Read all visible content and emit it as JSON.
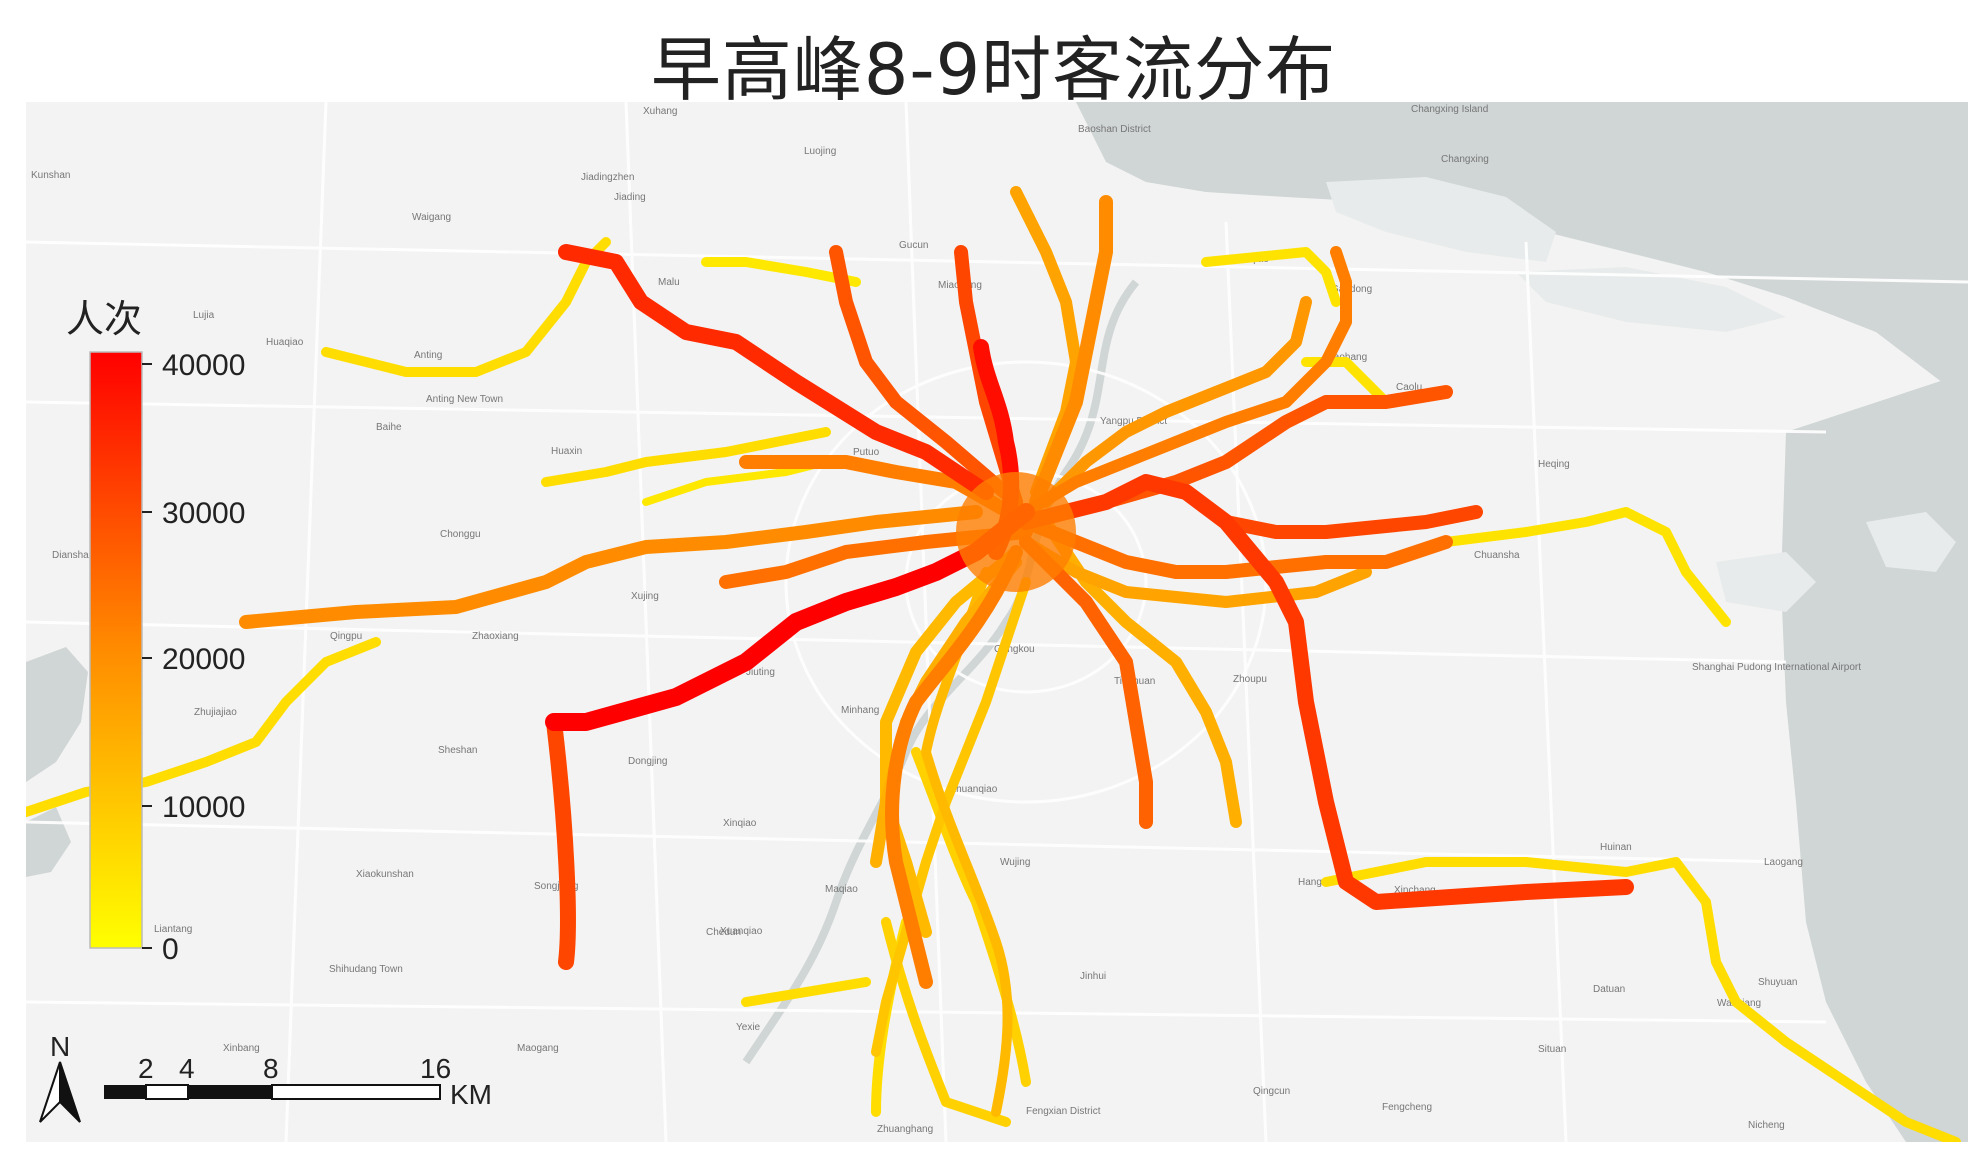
{
  "title": "早高峰8-9时客流分布",
  "legend": {
    "title": "人次",
    "ticks": [
      "40000",
      "30000",
      "20000",
      "10000",
      "0"
    ],
    "colors": {
      "high": "#ff0000",
      "mid": "#ff8c00",
      "low": "#ffff00"
    }
  },
  "scale_bar": {
    "ticks": [
      "2",
      "4",
      "8",
      "16"
    ],
    "unit": "KM"
  },
  "north_arrow": {
    "label": "N"
  },
  "colors": {
    "land": "#f3f3f3",
    "water": "#d0d5d5",
    "roads": "#ffffff"
  },
  "place_labels": [
    "Changxing Island",
    "Changxing",
    "Baoshan District",
    "Xuhang",
    "Kunshan",
    "Jiadingzhen",
    "Jiading",
    "Luojing",
    "Waigang",
    "Gucun",
    "Malu",
    "Miaohang",
    "Gaoqiao",
    "Gaodong",
    "Lujia",
    "Huaqiao",
    "Anting",
    "Anting New Town",
    "Gaohang",
    "Caolu",
    "Baihe",
    "Putuo",
    "Yangpu District",
    "Huaxin",
    "Heqing",
    "Chonggu",
    "Chuansha",
    "Xujing",
    "Qingpu",
    "Zhaoxiang",
    "Jiuting",
    "Gangkou",
    "Zhoupu",
    "Zhujiajiao",
    "Minhang",
    "Dongjing",
    "Sheshan",
    "Zhuanqiao",
    "Xinqiao",
    "Huinan",
    "Laogang",
    "Xiaokunshan",
    "Songjiang",
    "Maqiao",
    "Wujing",
    "Hangtou",
    "Xinchang",
    "Xuanqiao",
    "Chedun",
    "Liantang",
    "Shihudang Town",
    "Jinhui",
    "Datuan",
    "Shuyuan",
    "Wanxiang",
    "Yexie",
    "Xinbang",
    "Maogang",
    "Situan",
    "Qingcun",
    "Fengxian District",
    "Fengcheng",
    "Zhuanghang",
    "Nicheng",
    "Dianshanhu",
    "Shanghai Pudong International Airport",
    "Tianhuan"
  ]
}
